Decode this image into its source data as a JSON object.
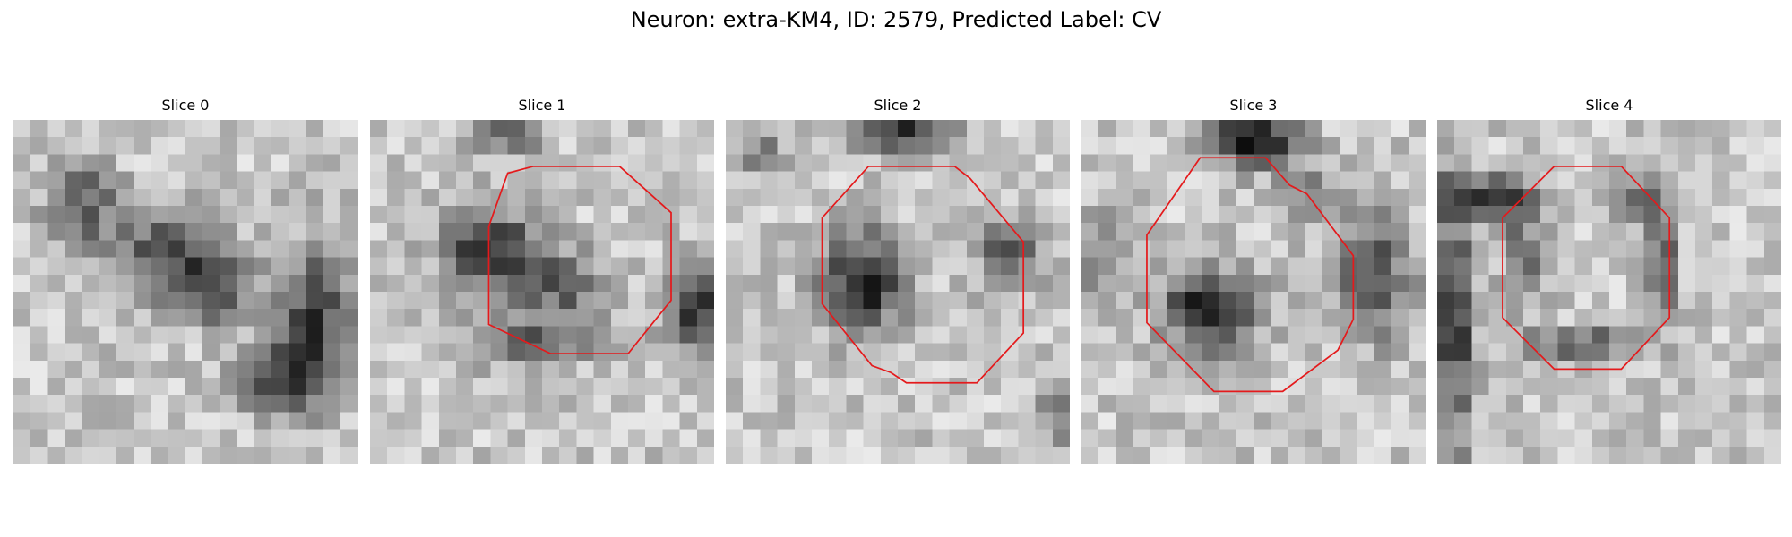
{
  "figure": {
    "title": "Neuron: extra-KM4, ID: 2579, Predicted Label: CV"
  },
  "colors": {
    "contour": "#e41a1c",
    "background": "#ffffff",
    "colormap": "gray"
  },
  "panels": [
    {
      "title": "Slice 0",
      "has_contour": false,
      "contour": null
    },
    {
      "title": "Slice 1",
      "has_contour": true,
      "contour": [
        [
          8,
          3.1
        ],
        [
          9.5,
          2.7
        ],
        [
          14.5,
          2.7
        ],
        [
          17.5,
          5.4
        ],
        [
          17.5,
          10.5
        ],
        [
          15,
          13.6
        ],
        [
          10.5,
          13.6
        ],
        [
          6.9,
          11.9
        ],
        [
          6.9,
          6.2
        ]
      ]
    },
    {
      "title": "Slice 2",
      "has_contour": true,
      "contour": [
        [
          8.3,
          2.7
        ],
        [
          13.3,
          2.7
        ],
        [
          14.2,
          3.4
        ],
        [
          17.3,
          7.1
        ],
        [
          17.3,
          12.4
        ],
        [
          14.6,
          15.3
        ],
        [
          10.5,
          15.3
        ],
        [
          9.6,
          14.7
        ],
        [
          8.5,
          14.3
        ],
        [
          5.6,
          10.7
        ],
        [
          5.6,
          5.7
        ]
      ]
    },
    {
      "title": "Slice 3",
      "has_contour": true,
      "contour": [
        [
          6.9,
          2.2
        ],
        [
          10.7,
          2.2
        ],
        [
          12.1,
          3.8
        ],
        [
          13.1,
          4.3
        ],
        [
          15.8,
          7.9
        ],
        [
          15.8,
          11.6
        ],
        [
          14.9,
          13.4
        ],
        [
          11.7,
          15.8
        ],
        [
          7.7,
          15.8
        ],
        [
          3.8,
          11.8
        ],
        [
          3.8,
          6.7
        ]
      ]
    },
    {
      "title": "Slice 4",
      "has_contour": true,
      "contour": [
        [
          6.8,
          2.7
        ],
        [
          10.7,
          2.7
        ],
        [
          13.5,
          5.7
        ],
        [
          13.5,
          11.5
        ],
        [
          10.7,
          14.5
        ],
        [
          6.8,
          14.5
        ],
        [
          3.8,
          11.5
        ],
        [
          3.8,
          5.7
        ]
      ]
    }
  ]
}
